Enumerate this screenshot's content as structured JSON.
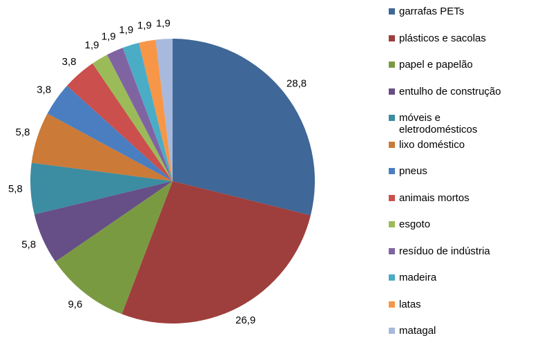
{
  "chart_data": {
    "type": "pie",
    "categories": [
      "garrafas PETs",
      "plásticos e sacolas",
      "papel e papelão",
      "entulho de construção",
      "móveis e eletrodomésticos",
      "lixo doméstico",
      "pneus",
      "animais mortos",
      "esgoto",
      "resíduo de indústria",
      "madeira",
      "latas",
      "matagal"
    ],
    "values": [
      28.8,
      26.9,
      9.6,
      5.8,
      5.8,
      5.8,
      3.8,
      3.8,
      1.9,
      1.9,
      1.9,
      1.9,
      1.9
    ],
    "value_labels": [
      "28,8",
      "26,9",
      "9,6",
      "5,8",
      "5,8",
      "5,8",
      "3,8",
      "3,8",
      "1,9",
      "1,9",
      "1,9",
      "1,9",
      "1,9"
    ],
    "colors": [
      "#3F6797",
      "#9E3F3D",
      "#7A9A42",
      "#664F86",
      "#3C8CA2",
      "#CC7A37",
      "#4A7EC0",
      "#CA4F4D",
      "#9BBB59",
      "#8064A2",
      "#4BACC6",
      "#F79646",
      "#A7B9DC"
    ],
    "legend": "right"
  }
}
